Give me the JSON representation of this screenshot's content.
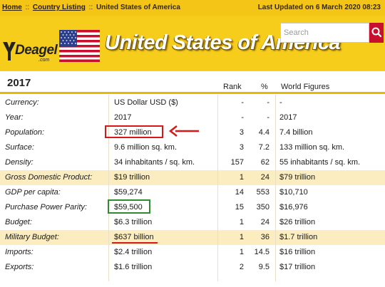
{
  "breadcrumb": {
    "home": "Home",
    "sep1": "::",
    "country_listing": "Country Listing",
    "sep2": "::",
    "current": "United States of America"
  },
  "last_updated": "Last Updated on 6 March 2020 08:23",
  "logo": {
    "name": "Deagel",
    "suffix": ".com"
  },
  "country_title": "United States of America",
  "search": {
    "placeholder": "Search"
  },
  "table": {
    "year": "2017",
    "columns": {
      "rank": "Rank",
      "pct": "%",
      "world": "World Figures"
    },
    "rows": [
      {
        "label": "Currency:",
        "value": "US Dollar USD ($)",
        "rank": "-",
        "pct": "-",
        "world": "-",
        "highlight": false
      },
      {
        "label": "Year:",
        "value": "2017",
        "rank": "-",
        "pct": "-",
        "world": "2017",
        "highlight": false
      },
      {
        "label": "Population:",
        "value": "327 million",
        "rank": "3",
        "pct": "4.4",
        "world": "7.4 billion",
        "highlight": false
      },
      {
        "label": "Surface:",
        "value": "9.6 million sq. km.",
        "rank": "3",
        "pct": "7.2",
        "world": "133 million sq. km.",
        "highlight": false
      },
      {
        "label": "Density:",
        "value": "34 inhabitants / sq. km.",
        "rank": "157",
        "pct": "62",
        "world": "55 inhabitants / sq. km.",
        "highlight": false
      },
      {
        "label": "Gross Domestic Product:",
        "value": "$19 trillion",
        "rank": "1",
        "pct": "24",
        "world": "$79 trillion",
        "highlight": true
      },
      {
        "label": "GDP per capita:",
        "value": "$59,274",
        "rank": "14",
        "pct": "553",
        "world": "$10,710",
        "highlight": false
      },
      {
        "label": "Purchase Power Parity:",
        "value": "$59,500",
        "rank": "15",
        "pct": "350",
        "world": "$16,976",
        "highlight": false
      },
      {
        "label": "Budget:",
        "value": "$6.3 trillion",
        "rank": "1",
        "pct": "24",
        "world": "$26 trillion",
        "highlight": false
      },
      {
        "label": "Military Budget:",
        "value": "$637 billion",
        "rank": "1",
        "pct": "36",
        "world": "$1.7 trillion",
        "highlight": true
      },
      {
        "label": "Imports:",
        "value": "$2.4 trillion",
        "rank": "1",
        "pct": "14.5",
        "world": "$16 trillion",
        "highlight": false
      },
      {
        "label": "Exports:",
        "value": "$1.6 trillion",
        "rank": "2",
        "pct": "9.5",
        "world": "$17 trillion",
        "highlight": false
      }
    ]
  },
  "colors": {
    "brand_yellow": "#f6c81a",
    "highlight_row": "#fbedc0",
    "annotation_red": "#d81818",
    "annotation_green": "#2e8b2e"
  }
}
